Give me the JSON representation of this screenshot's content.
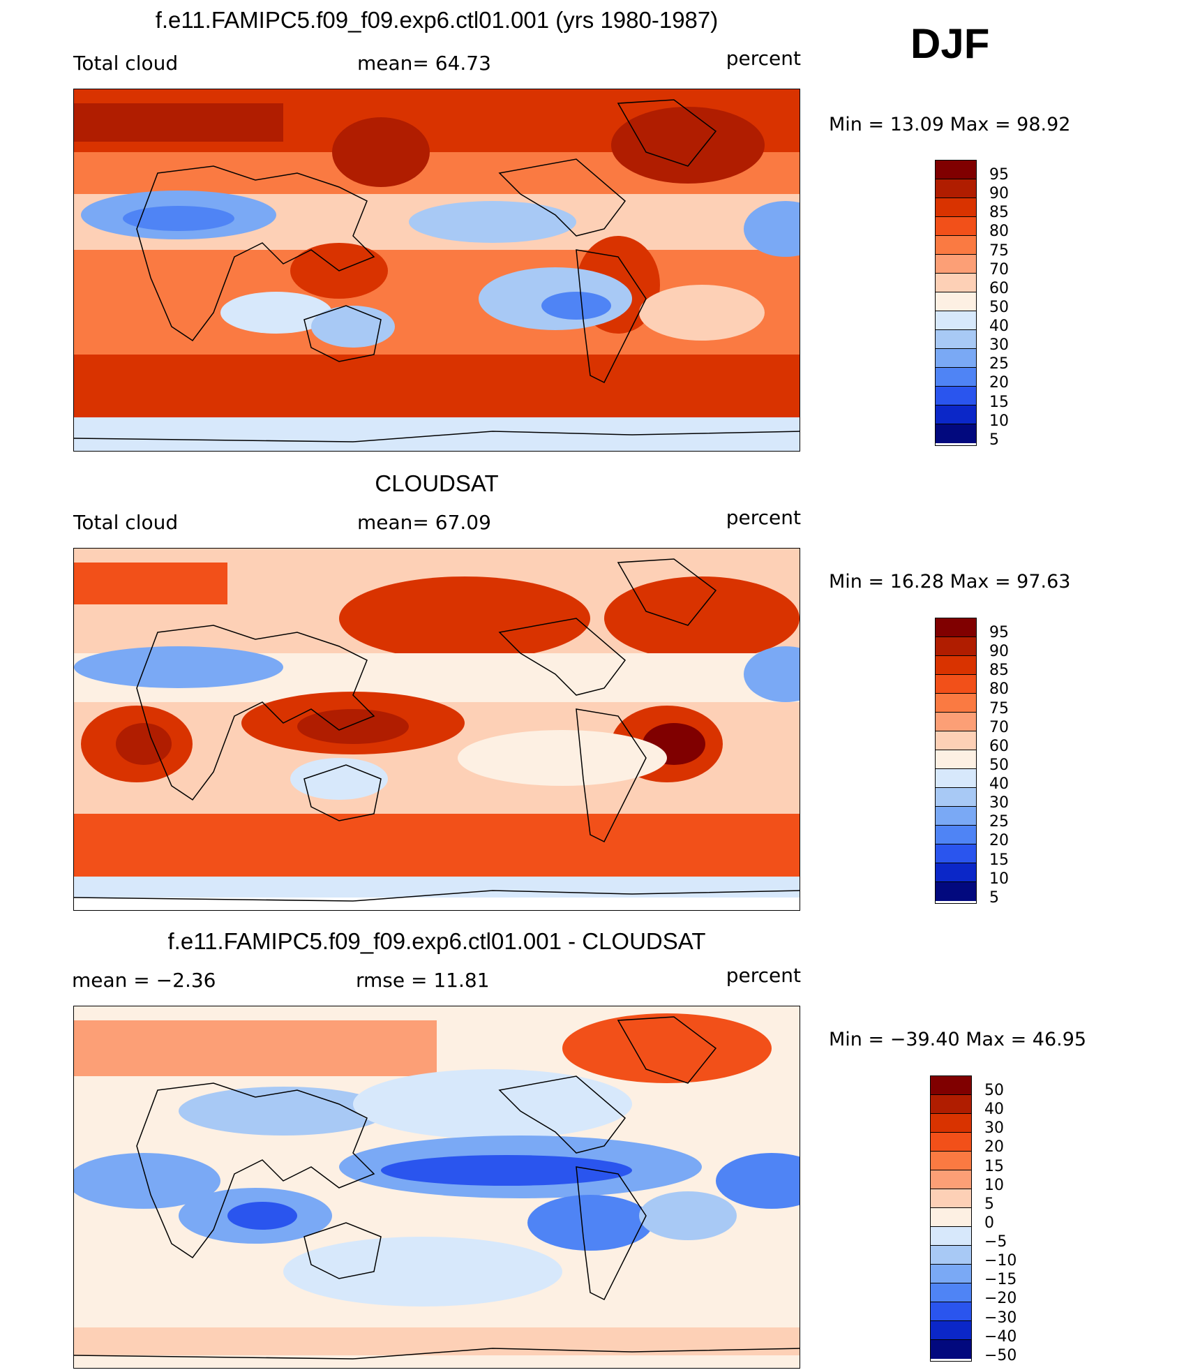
{
  "season": "DJF",
  "panels": [
    {
      "title": "f.e11.FAMIPC5.f09_f09.exp6.ctl01.001 (yrs 1980-1987)",
      "left": "Total cloud",
      "center": "mean=   64.73",
      "units": "percent",
      "minmax": "Min  =    13.09  Max  =    98.92",
      "legend": [
        "95",
        "90",
        "85",
        "80",
        "75",
        "70",
        "60",
        "50",
        "40",
        "30",
        "25",
        "20",
        "15",
        "10",
        "5"
      ],
      "colors": [
        "#800000",
        "#b01d00",
        "#d93300",
        "#f25019",
        "#fa7a42",
        "#fc9f76",
        "#fdd0b6",
        "#fdf0e3",
        "#d7e8fb",
        "#a8c9f5",
        "#7aa9f5",
        "#4f84f5",
        "#2a55ee",
        "#0b27c8",
        "#02097e"
      ]
    },
    {
      "title": "CLOUDSAT",
      "left": "Total cloud",
      "center": "mean=   67.09",
      "units": "percent",
      "minmax": "Min  =    16.28  Max  =    97.63",
      "legend": [
        "95",
        "90",
        "85",
        "80",
        "75",
        "70",
        "60",
        "50",
        "40",
        "30",
        "25",
        "20",
        "15",
        "10",
        "5"
      ],
      "colors": [
        "#800000",
        "#b01d00",
        "#d93300",
        "#f25019",
        "#fa7a42",
        "#fc9f76",
        "#fdd0b6",
        "#fdf0e3",
        "#d7e8fb",
        "#a8c9f5",
        "#7aa9f5",
        "#4f84f5",
        "#2a55ee",
        "#0b27c8",
        "#02097e"
      ]
    },
    {
      "title": "f.e11.FAMIPC5.f09_f09.exp6.ctl01.001 - CLOUDSAT",
      "left": "mean  =    −2.36",
      "center": "rmse  =    11.81",
      "units": "percent",
      "minmax": "Min  = −39.40  Max  =    46.95",
      "legend": [
        "50",
        "40",
        "30",
        "20",
        "15",
        "10",
        "5",
        "0",
        "−5",
        "−10",
        "−15",
        "−20",
        "−30",
        "−40",
        "−50"
      ],
      "colors": [
        "#800000",
        "#b01d00",
        "#d93300",
        "#f25019",
        "#fa7a42",
        "#fc9f76",
        "#fdd0b6",
        "#fdf0e3",
        "#d7e8fb",
        "#a8c9f5",
        "#7aa9f5",
        "#4f84f5",
        "#2a55ee",
        "#0b27c8",
        "#02097e"
      ]
    }
  ]
}
